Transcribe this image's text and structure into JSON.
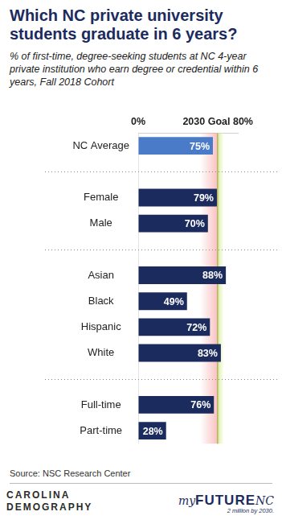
{
  "chart_data": {
    "type": "bar",
    "orientation": "horizontal",
    "title": "Which NC private university students graduate in 6 years?",
    "subtitle": "% of first-time, degree-seeking students at NC 4-year private institution who earn degree or credential within 6 years, Fall 2018 Cohort",
    "categories": [
      "NC Average",
      null,
      "Female",
      "Male",
      null,
      "Asian",
      "Black",
      "Hispanic",
      "White",
      null,
      "Full-time",
      "Part-time"
    ],
    "values": [
      75,
      null,
      79,
      70,
      null,
      88,
      49,
      72,
      83,
      null,
      76,
      28
    ],
    "value_labels": [
      "75%",
      null,
      "79%",
      "70%",
      null,
      "88%",
      "49%",
      "72%",
      "83%",
      null,
      "76%",
      "28%"
    ],
    "colors": [
      "#4a7bc8",
      null,
      "#1c2b5e",
      "#1c2b5e",
      null,
      "#1c2b5e",
      "#1c2b5e",
      "#1c2b5e",
      "#1c2b5e",
      null,
      "#1c2b5e",
      "#1c2b5e"
    ],
    "xlim": [
      0,
      100
    ],
    "xticks": [
      {
        "value": 0,
        "label": "0%"
      },
      {
        "value": 80,
        "label": "2030 Goal 80%"
      }
    ],
    "grid": true,
    "data_labels": true
  },
  "footer": {
    "source": "Source: NSC Research Center",
    "left_logo": [
      "CAROLINA",
      "DEMOGRAPHY"
    ],
    "right_logo": {
      "parts": [
        "my",
        "FUTURE",
        "NC"
      ],
      "tagline": "2 million by 2030."
    }
  }
}
